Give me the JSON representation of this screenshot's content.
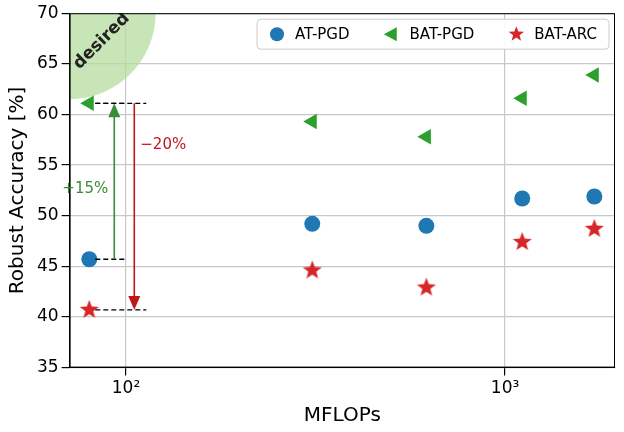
{
  "chart_data": {
    "type": "scatter",
    "x_label": "MFLOPs",
    "y_label": "Robust Accuracy [%]",
    "x": [
      80,
      310,
      620,
      1110,
      1720
    ],
    "series": [
      {
        "name": "AT-PGD",
        "color": "#1f77b4",
        "marker": "circle",
        "values": [
          45.7,
          49.2,
          49.0,
          51.7,
          51.9
        ]
      },
      {
        "name": "BAT-PGD",
        "color": "#2ca02c",
        "marker": "triangle-left",
        "values": [
          61.1,
          59.3,
          57.8,
          61.6,
          63.9
        ]
      },
      {
        "name": "BAT-ARC",
        "color": "#d62728",
        "marker": "star",
        "values": [
          40.7,
          44.6,
          42.9,
          47.4,
          48.7
        ]
      }
    ],
    "log": "x",
    "xlim": [
      71,
      1950
    ],
    "xticks": [
      {
        "value": 100,
        "label": "10²"
      },
      {
        "value": 1000,
        "label": "10³"
      }
    ],
    "ylim": [
      35,
      70
    ],
    "yticks": [
      35,
      40,
      45,
      50,
      55,
      60,
      65,
      70
    ],
    "grid": true,
    "legend": "upper right",
    "annotations": [
      {
        "text": "+15%",
        "from": "AT-PGD",
        "to": "BAT-PGD",
        "color": "#3d8b37"
      },
      {
        "text": "−20%",
        "from": "BAT-PGD",
        "to": "BAT-ARC",
        "color": "#c0171d"
      },
      {
        "text": "desired",
        "color": "#b5dca0"
      }
    ]
  }
}
